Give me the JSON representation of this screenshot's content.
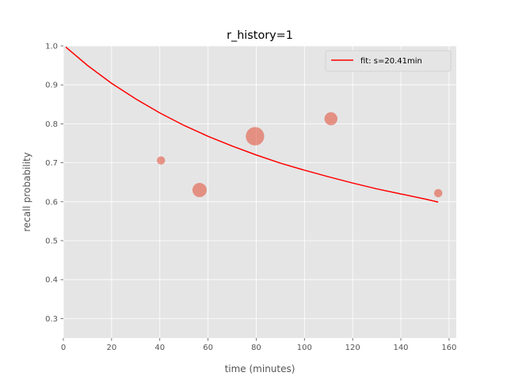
{
  "chart_data": {
    "type": "scatter",
    "title": "r_history=1",
    "xlabel": "time (minutes)",
    "ylabel": "recall probability",
    "xlim": [
      0,
      163
    ],
    "ylim": [
      0.25,
      1.0
    ],
    "xticks": [
      0,
      20,
      40,
      60,
      80,
      100,
      120,
      140,
      160
    ],
    "yticks": [
      0.3,
      0.4,
      0.5,
      0.6,
      0.7,
      0.8,
      0.9,
      1.0
    ],
    "xtick_labels": [
      "0",
      "20",
      "40",
      "60",
      "80",
      "100",
      "120",
      "140",
      "160"
    ],
    "ytick_labels": [
      "0.3",
      "0.4",
      "0.5",
      "0.6",
      "0.7",
      "0.8",
      "0.9",
      "1.0"
    ],
    "grid": true,
    "legend_position": "top-right",
    "series": [
      {
        "name": "fit: s=20.41min",
        "kind": "line",
        "color": "#ff0000",
        "x": [
          1,
          10,
          20,
          30,
          40,
          50,
          60,
          70,
          80,
          90,
          100,
          110,
          120,
          130,
          140,
          150,
          155.5
        ],
        "y": [
          0.997,
          0.95,
          0.904,
          0.864,
          0.828,
          0.796,
          0.768,
          0.743,
          0.72,
          0.699,
          0.681,
          0.664,
          0.648,
          0.633,
          0.62,
          0.607,
          0.599
        ]
      },
      {
        "kind": "scatter",
        "color": "#e24a33",
        "opacity": 0.55,
        "points": [
          {
            "x": 40.5,
            "y": 0.706,
            "weight": 1
          },
          {
            "x": 56.5,
            "y": 0.63,
            "weight": 3
          },
          {
            "x": 79.5,
            "y": 0.768,
            "weight": 5
          },
          {
            "x": 111,
            "y": 0.813,
            "weight": 2.5
          },
          {
            "x": 155.5,
            "y": 0.622,
            "weight": 1
          }
        ]
      }
    ]
  }
}
